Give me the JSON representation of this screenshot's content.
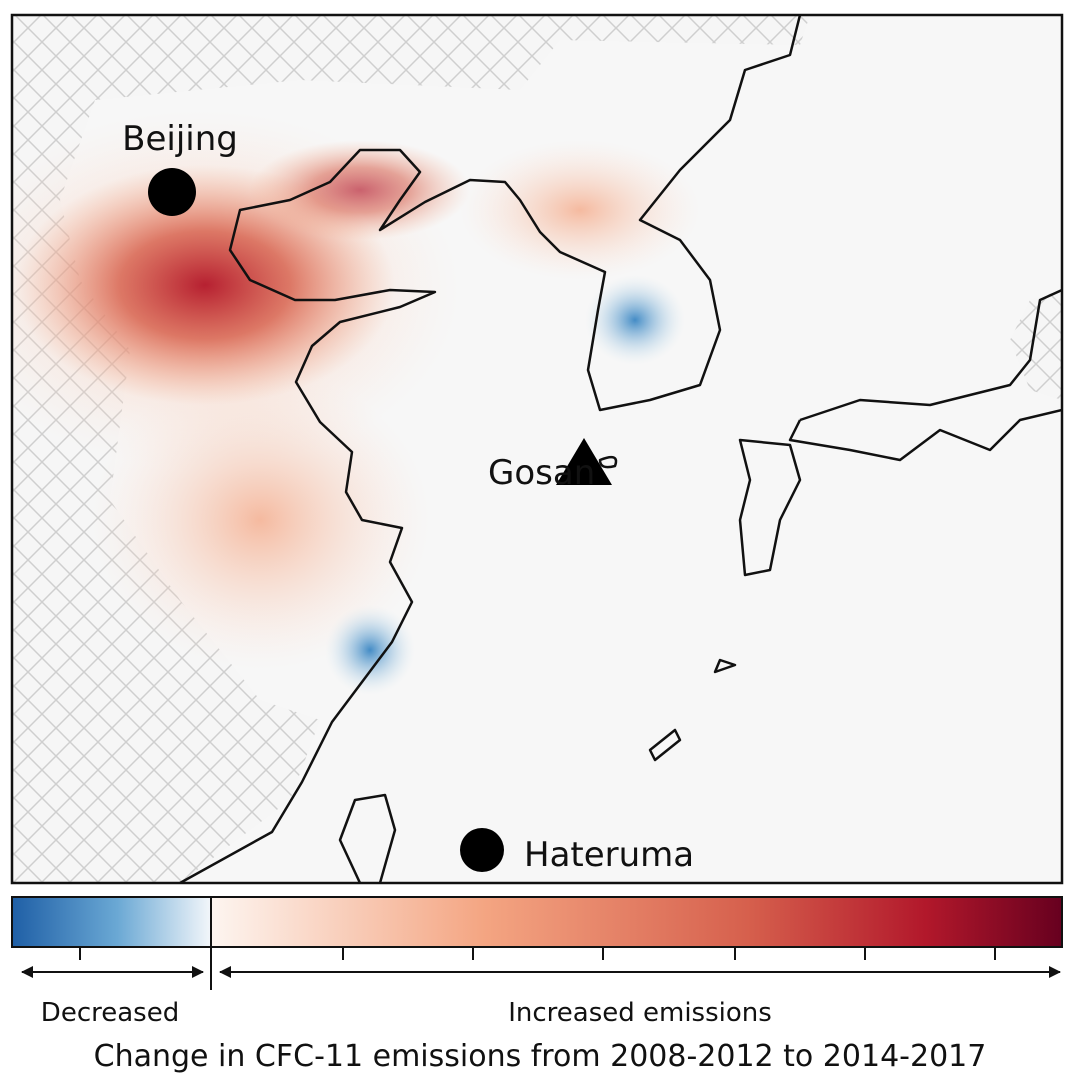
{
  "labels": {
    "beijing": "Beijing",
    "gosan": "Gosan",
    "hateruma": "Hateruma"
  },
  "colorbar": {
    "decreased": "Decreased",
    "increased": "Increased emissions"
  },
  "caption": "Change in CFC-11 emissions from 2008-2012 to 2014-2017"
}
